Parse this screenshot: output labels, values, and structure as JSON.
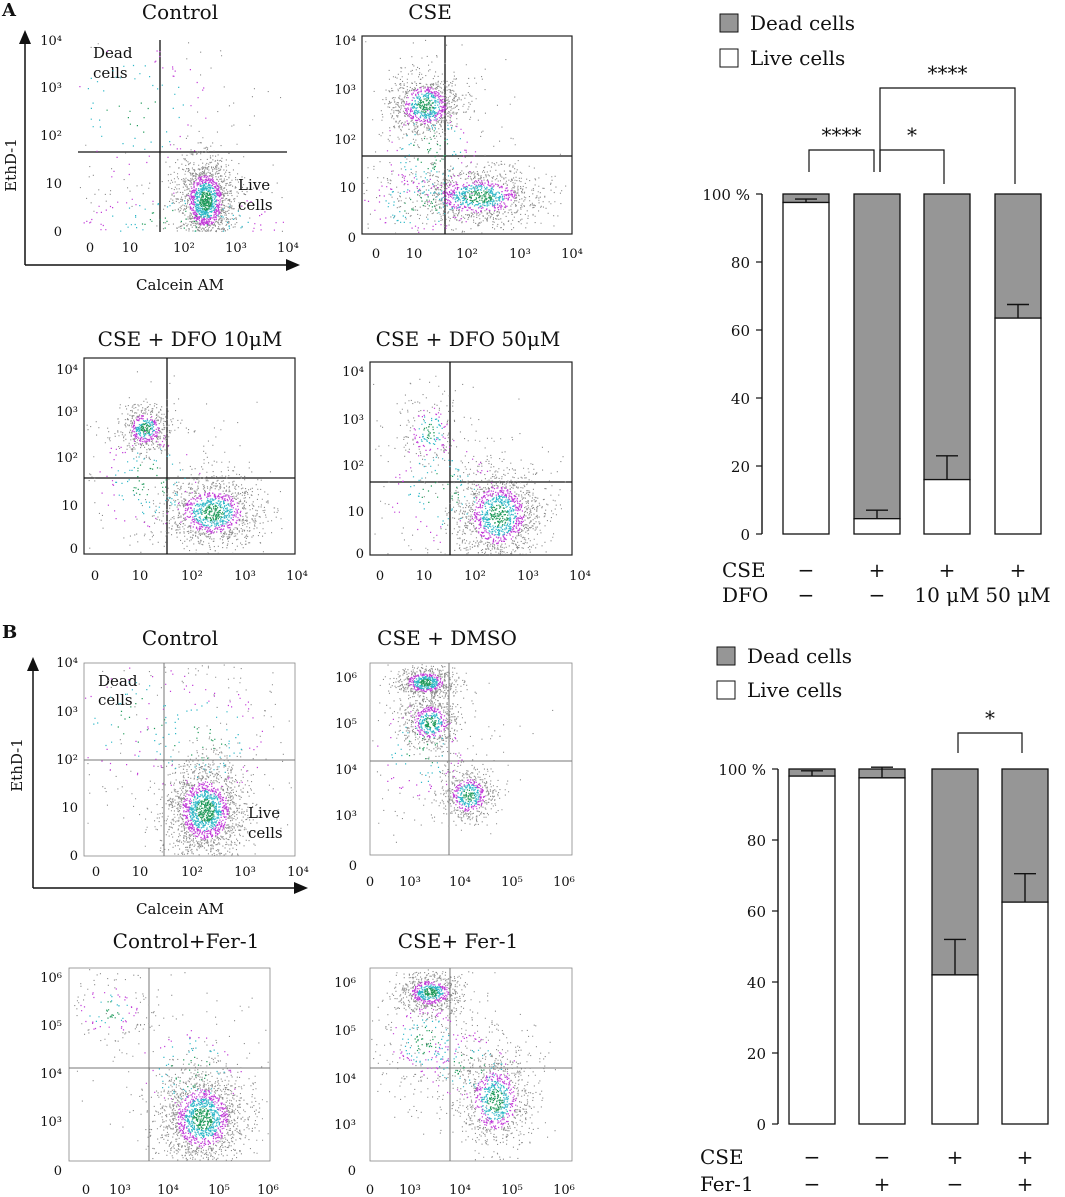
{
  "panel_labels": {
    "a": "A",
    "b": "B"
  },
  "flow_a": {
    "ylabel": "EthD-1",
    "xlabel": "Calcein AM",
    "tick_labels": [
      "0",
      "10",
      "10²",
      "10³",
      "10⁴"
    ],
    "quadrant_dead": [
      "Dead",
      "cells"
    ],
    "quadrant_live": [
      "Live",
      "cells"
    ],
    "plots": [
      {
        "title": "Control"
      },
      {
        "title": "CSE"
      },
      {
        "title": "CSE + DFO 10μM"
      },
      {
        "title": "CSE + DFO 50μM"
      }
    ]
  },
  "flow_b": {
    "ylabel": "EthD-1",
    "xlabel": "Calcein AM",
    "control_ticks": [
      "0",
      "10",
      "10²",
      "10³",
      "10⁴"
    ],
    "cse_ticks": [
      "0",
      "10³",
      "10⁴",
      "10⁵",
      "10⁶"
    ],
    "quadrant_dead": [
      "Dead",
      "cells"
    ],
    "quadrant_live": [
      "Live",
      "cells"
    ],
    "plots": [
      {
        "title": "Control"
      },
      {
        "title": "CSE + DMSO"
      },
      {
        "title": "Control+Fer-1"
      },
      {
        "title": "CSE+ Fer-1"
      }
    ]
  },
  "chart_data": [
    {
      "type": "bar",
      "subtype": "stacked-percent",
      "legend": [
        "Dead cells",
        "Live cells"
      ],
      "legend_position": "top",
      "colors": {
        "dead": "#969696",
        "live": "#ffffff"
      },
      "ylim": [
        0,
        100
      ],
      "yticks": [
        "0",
        "20",
        "40",
        "60",
        "80",
        "100 %"
      ],
      "row_labels": [
        "CSE",
        "DFO"
      ],
      "conditions": [
        [
          "−",
          "−"
        ],
        [
          "+",
          "−"
        ],
        [
          "+",
          "10 μM"
        ],
        [
          "+",
          "50 μM"
        ]
      ],
      "live_values": [
        97.5,
        4.5,
        16,
        63.5
      ],
      "error_bars": [
        1,
        2.5,
        7,
        4
      ],
      "significance": [
        {
          "label": "****",
          "pair": [
            0,
            1
          ]
        },
        {
          "label": "*",
          "pair": [
            1,
            2
          ]
        },
        {
          "label": "****",
          "pair": [
            1,
            3
          ]
        }
      ]
    },
    {
      "type": "bar",
      "subtype": "stacked-percent",
      "legend": [
        "Dead cells",
        "Live cells"
      ],
      "legend_position": "top",
      "colors": {
        "dead": "#969696",
        "live": "#ffffff"
      },
      "ylim": [
        0,
        100
      ],
      "yticks": [
        "0",
        "20",
        "40",
        "60",
        "80",
        "100 %"
      ],
      "row_labels": [
        "CSE",
        "Fer-1"
      ],
      "conditions": [
        [
          "−",
          "−"
        ],
        [
          "−",
          "+"
        ],
        [
          "+",
          "−"
        ],
        [
          "+",
          "+"
        ]
      ],
      "live_values": [
        98,
        97.5,
        42,
        62.5
      ],
      "error_bars": [
        1.5,
        3,
        10,
        8
      ],
      "significance": [
        {
          "label": "*",
          "pair": [
            2,
            3
          ]
        }
      ]
    }
  ]
}
